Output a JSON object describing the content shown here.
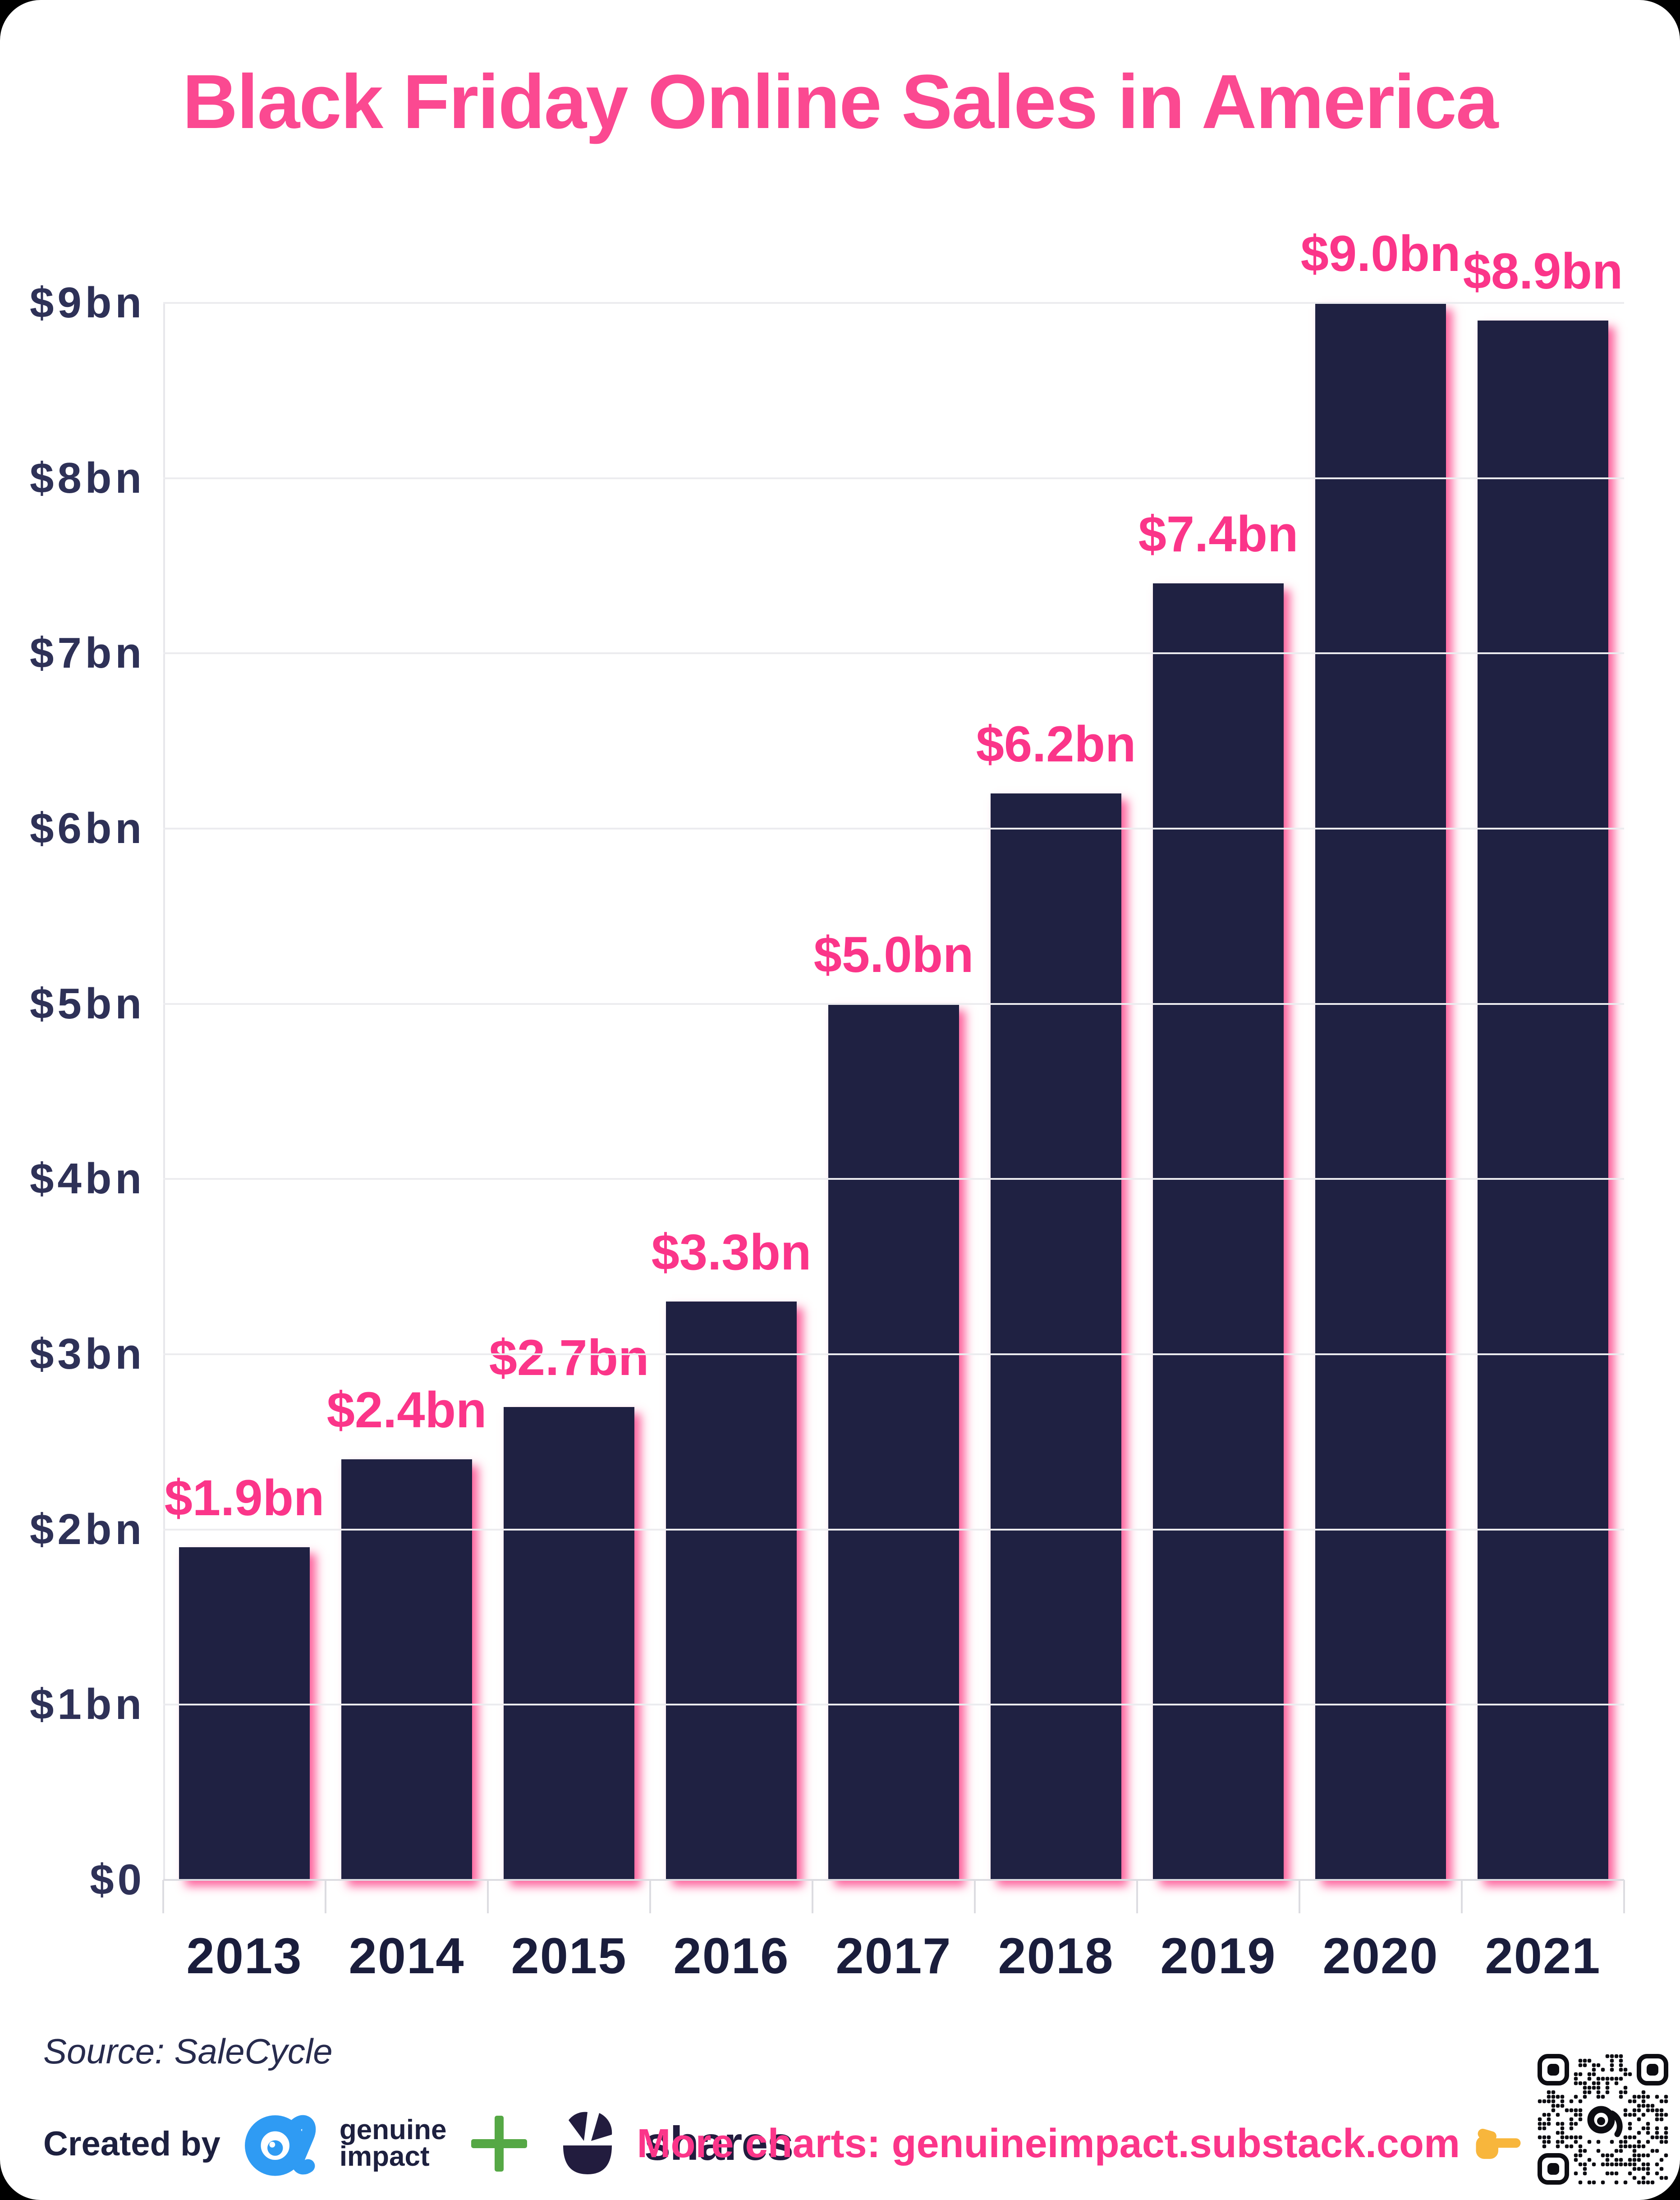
{
  "title": "Black Friday Online Sales in America",
  "chart_data": {
    "type": "bar",
    "categories": [
      "2013",
      "2014",
      "2015",
      "2016",
      "2017",
      "2018",
      "2019",
      "2020",
      "2021"
    ],
    "values": [
      1.9,
      2.4,
      2.7,
      3.3,
      5.0,
      6.2,
      7.4,
      9.0,
      8.9
    ],
    "bar_labels": [
      "$1.9bn",
      "$2.4bn",
      "$2.7bn",
      "$3.3bn",
      "$5.0bn",
      "$6.2bn",
      "$7.4bn",
      "$9.0bn",
      "$8.9bn"
    ],
    "title": "Black Friday Online Sales in America",
    "xlabel": "",
    "ylabel": "",
    "ylim": [
      0,
      9
    ],
    "ytick_labels": [
      "$0",
      "$1bn",
      "$2bn",
      "$3bn",
      "$4bn",
      "$5bn",
      "$6bn",
      "$7bn",
      "$8bn",
      "$9bn"
    ],
    "grid": "horizontal",
    "legend": "none",
    "bar_color": "#1f2142",
    "bar_shadow_color": "#ff2d7c",
    "value_label_color": "#fb3589"
  },
  "footer": {
    "source": "Source: SaleCycle",
    "created_by_label": "Created by",
    "genuine_impact_line1": "genuine",
    "genuine_impact_line2": "impact",
    "plus_label": "+",
    "shares_label": "shares",
    "more_charts": "More charts: genuineimpact.substack.com"
  },
  "icons": {
    "genuine_impact_logo": "blue alpha eye logo",
    "shares_logo": "navy pie segments logo",
    "plus_icon": "green plus",
    "pointing_finger_icon": "yellow hand pointing right",
    "qr_code": "QR code with alpha logo center"
  },
  "colors": {
    "accent_pink": "#fb4991",
    "bar_navy": "#1f2142",
    "shadow_pink": "#ff2d7c",
    "axis_text": "#2e3157",
    "gridline": "#ececef",
    "logo_blue": "#2f9bf3",
    "plus_green": "#55a845",
    "card_background": "#ffffff",
    "page_background": "#000000"
  }
}
